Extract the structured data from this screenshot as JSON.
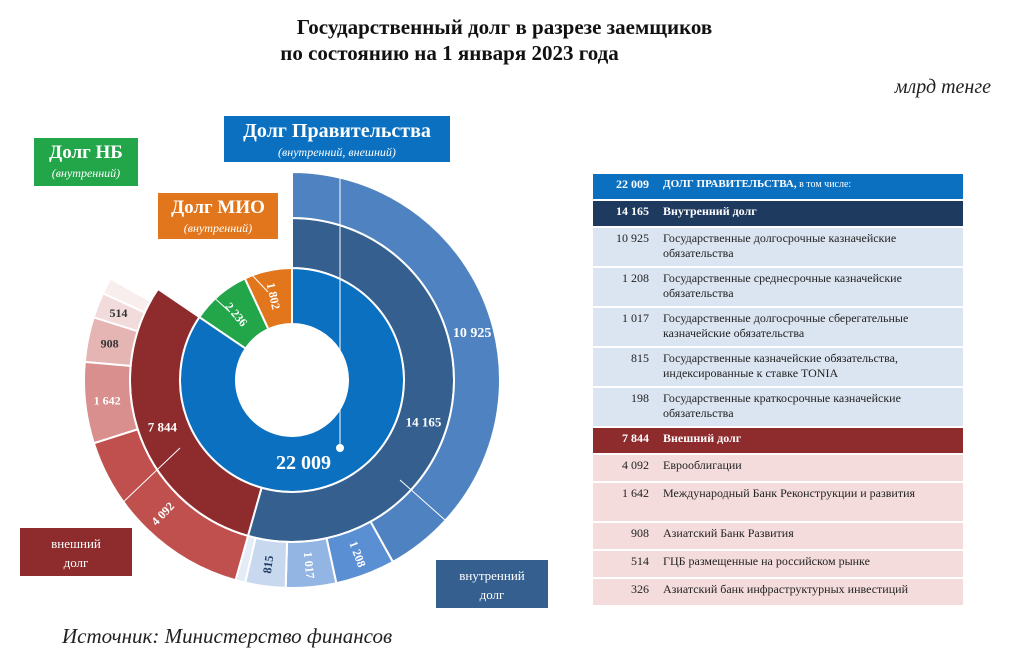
{
  "page": {
    "title_line1": "Государственный долг в разрезе заемщиков",
    "title_line2": "по состоянию на 1 января 2023 года",
    "unit": "млрд тенге",
    "source": "Источник: Министерство финансов"
  },
  "callouts": {
    "gov": {
      "title": "Долг Правительства",
      "sub": "(внутренний, внешний)"
    },
    "nb": {
      "title": "Долг НБ",
      "sub": "(внутренний)"
    },
    "mio": {
      "title": "Долг МИО",
      "sub": "(внутренний)"
    },
    "external_tag": {
      "line1": "внешний",
      "line2": "долг"
    },
    "internal_tag": {
      "line1": "внутренний",
      "line2": "долг"
    }
  },
  "chart_data": {
    "type": "sunburst",
    "center_label": "22 009",
    "borrowers": [
      {
        "name": "Долг Правительства",
        "value": 22009,
        "label": "22 009",
        "color": "#0b70c0"
      },
      {
        "name": "Долг НБ",
        "value": 2236,
        "label": "2 236",
        "color": "#23a64a"
      },
      {
        "name": "Долг МИО",
        "value": 1802,
        "label": "1 802",
        "color": "#e2761c"
      }
    ],
    "government_split": [
      {
        "name": "внутренний долг",
        "value": 14165,
        "label": "14 165",
        "color": "#345f8e"
      },
      {
        "name": "внешний долг",
        "value": 7844,
        "label": "7 844",
        "color": "#8e2b2d"
      }
    ],
    "internal_items": [
      {
        "value": 10925,
        "label": "10 925",
        "color": "#4f82c0"
      },
      {
        "value": 1208,
        "label": "1 208",
        "color": "#5b8fd3"
      },
      {
        "value": 1017,
        "label": "1 017",
        "color": "#93b5e3"
      },
      {
        "value": 815,
        "label": "815",
        "color": "#c7d8ef"
      },
      {
        "value": 198,
        "label": "",
        "color": "#e3ecf7"
      }
    ],
    "external_items": [
      {
        "value": 4092,
        "label": "4 092",
        "color": "#c0504d"
      },
      {
        "value": 1642,
        "label": "1 642",
        "color": "#d88f8d"
      },
      {
        "value": 908,
        "label": "908",
        "color": "#e5b5b3"
      },
      {
        "value": 514,
        "label": "514",
        "color": "#f2dcdb"
      },
      {
        "value": 326,
        "label": "",
        "color": "#f9eeee"
      }
    ]
  },
  "table": {
    "gov_row": {
      "value": "22 009",
      "label": "ДОЛГ ПРАВИТЕЛЬСТВА,",
      "suffix": " в том числе:"
    },
    "internal_head": {
      "value": "14 165",
      "label": "Внутренний долг"
    },
    "internal_rows": [
      {
        "value": "10 925",
        "label": "Государственные долгосрочные казначейские обязательства"
      },
      {
        "value": "1 208",
        "label": "Государственные среднесрочные казначейские обязательства"
      },
      {
        "value": "1 017",
        "label": "Государственные долгосрочные сберегательные казначейские обязательства"
      },
      {
        "value": "815",
        "label": "Государственные казначейские обязательства, индексированные к ставке TONIA"
      },
      {
        "value": "198",
        "label": "Государственные краткосрочные казначейские обязательства"
      }
    ],
    "external_head": {
      "value": "7 844",
      "label": "Внешний долг"
    },
    "external_rows": [
      {
        "value": "4 092",
        "label": "Еврооблигации"
      },
      {
        "value": "1 642",
        "label": "Международный Банк Реконструкции и развития"
      },
      {
        "value": "908",
        "label": "Азиатский Банк Развития"
      },
      {
        "value": "514",
        "label": "ГЦБ размещенные на российском рынке"
      },
      {
        "value": "326",
        "label": "Азиатский банк инфраструктурных инвестиций"
      }
    ]
  }
}
